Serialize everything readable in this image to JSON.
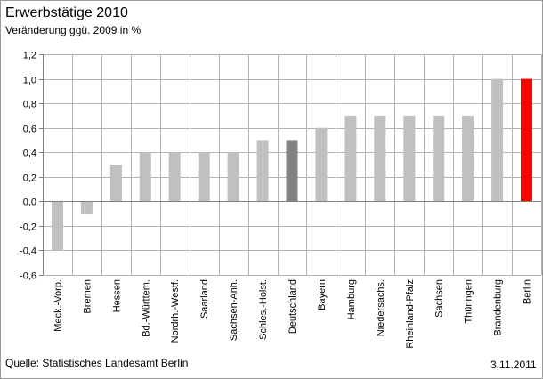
{
  "chart_data": {
    "type": "bar",
    "title": "Erwerbstätige 2010",
    "subtitle": "Veränderung ggü. 2009 in %",
    "categories": [
      "Meck.-Vorp.",
      "Bremen",
      "Hessen",
      "Bd.-Württem.",
      "Nordrh.-Westf.",
      "Saarland",
      "Sachsen-Anh.",
      "Schles.-Holst.",
      "Deutschland",
      "Bayern",
      "Hamburg",
      "Niedersachs.",
      "Rheinland-Pfalz",
      "Sachsen",
      "Thüringen",
      "Brandenburg",
      "Berlin"
    ],
    "values": [
      -0.4,
      -0.1,
      0.3,
      0.4,
      0.4,
      0.4,
      0.4,
      0.5,
      0.5,
      0.6,
      0.7,
      0.7,
      0.7,
      0.7,
      0.7,
      1.0,
      1.0
    ],
    "bar_colors": [
      "#c0c0c0",
      "#c0c0c0",
      "#c0c0c0",
      "#c0c0c0",
      "#c0c0c0",
      "#c0c0c0",
      "#c0c0c0",
      "#c0c0c0",
      "#808080",
      "#c0c0c0",
      "#c0c0c0",
      "#c0c0c0",
      "#c0c0c0",
      "#c0c0c0",
      "#c0c0c0",
      "#c0c0c0",
      "#ff0000"
    ],
    "ylim": [
      -0.6,
      1.2
    ],
    "yticks": [
      -0.6,
      -0.4,
      -0.2,
      0.0,
      0.2,
      0.4,
      0.6,
      0.8,
      1.0,
      1.2
    ],
    "ytick_labels": [
      "-0,6",
      "-0,4",
      "-0,2",
      "0,0",
      "0,2",
      "0,4",
      "0,6",
      "0,8",
      "1,0",
      "1,2"
    ],
    "grid": true,
    "xlabel": "",
    "ylabel": ""
  },
  "footer": {
    "source": "Quelle: Statistisches Landesamt Berlin",
    "date": "3.11.2011"
  }
}
